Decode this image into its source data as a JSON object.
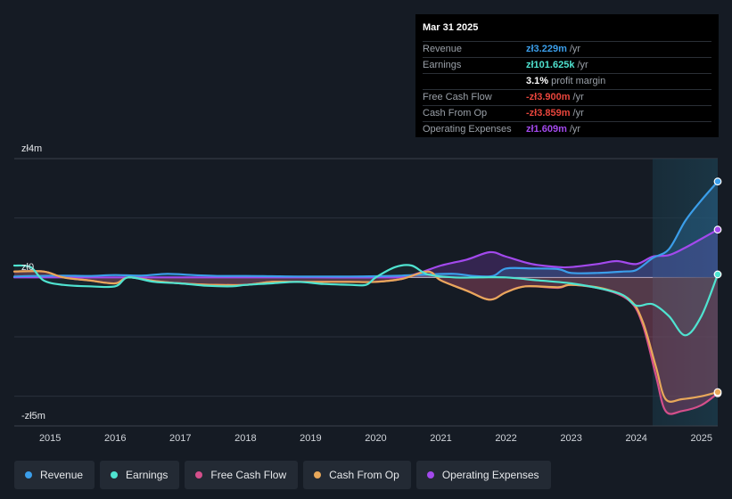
{
  "chart_data": {
    "type": "line",
    "currency_axis_labels": {
      "top": "zł4m",
      "zero": "zł0",
      "bottom": "-zł5m"
    },
    "ylim": [
      -5,
      4
    ],
    "y_unit": "zł millions",
    "x_ticks": [
      "2015",
      "2016",
      "2017",
      "2018",
      "2019",
      "2020",
      "2021",
      "2022",
      "2023",
      "2024",
      "2025"
    ],
    "xlim": [
      2014.45,
      2025.25
    ],
    "highlight_start": 2024.25,
    "series": [
      {
        "name": "Revenue",
        "color": "#3b9eea",
        "x": [
          2014.45,
          2014.8,
          2015.2,
          2015.6,
          2016.0,
          2016.4,
          2016.8,
          2017.2,
          2017.6,
          2018.0,
          2018.4,
          2018.8,
          2019.2,
          2019.6,
          2020.0,
          2020.4,
          2020.8,
          2021.2,
          2021.5,
          2021.8,
          2022.0,
          2022.4,
          2022.8,
          2023.0,
          2023.4,
          2023.8,
          2024.0,
          2024.25,
          2024.5,
          2024.75,
          2025.0,
          2025.25
        ],
        "values": [
          0.03,
          0.05,
          0.06,
          0.05,
          0.08,
          0.06,
          0.12,
          0.08,
          0.05,
          0.05,
          0.04,
          0.03,
          0.03,
          0.03,
          0.04,
          0.06,
          0.1,
          0.12,
          0.05,
          0.05,
          0.3,
          0.3,
          0.28,
          0.15,
          0.15,
          0.2,
          0.25,
          0.65,
          0.95,
          1.9,
          2.6,
          3.229
        ]
      },
      {
        "name": "Earnings",
        "color": "#4fe3d0",
        "x": [
          2014.45,
          2014.7,
          2014.9,
          2015.2,
          2015.6,
          2016.0,
          2016.2,
          2016.6,
          2017.0,
          2017.4,
          2017.8,
          2018.0,
          2018.4,
          2018.8,
          2019.2,
          2019.6,
          2019.85,
          2020.0,
          2020.3,
          2020.55,
          2020.8,
          2021.2,
          2021.6,
          2022.0,
          2022.5,
          2023.0,
          2023.5,
          2023.8,
          2024.0,
          2024.25,
          2024.5,
          2024.75,
          2025.0,
          2025.25
        ],
        "values": [
          0.4,
          0.35,
          -0.1,
          -0.25,
          -0.3,
          -0.3,
          0.0,
          -0.15,
          -0.2,
          -0.28,
          -0.3,
          -0.25,
          -0.2,
          -0.15,
          -0.22,
          -0.25,
          -0.25,
          0.0,
          0.35,
          0.4,
          0.1,
          0.0,
          0.0,
          0.0,
          -0.1,
          -0.2,
          -0.4,
          -0.6,
          -0.95,
          -0.9,
          -1.3,
          -1.95,
          -1.3,
          0.1016
        ]
      },
      {
        "name": "Free Cash Flow",
        "color": "#d44f8b",
        "x": [
          2014.45,
          2014.9,
          2015.2,
          2015.6,
          2016.0,
          2016.2,
          2016.6,
          2017.0,
          2017.5,
          2018.0,
          2018.4,
          2018.8,
          2019.2,
          2019.6,
          2020.0,
          2020.4,
          2020.8,
          2021.0,
          2021.4,
          2021.75,
          2022.0,
          2022.3,
          2022.8,
          2023.0,
          2023.5,
          2023.9,
          2024.1,
          2024.3,
          2024.45,
          2024.7,
          2025.0,
          2025.25
        ],
        "values": [
          0.2,
          0.2,
          0.0,
          -0.1,
          -0.2,
          0.0,
          -0.12,
          -0.2,
          -0.25,
          -0.25,
          -0.15,
          -0.15,
          -0.15,
          -0.15,
          -0.15,
          -0.05,
          0.2,
          -0.1,
          -0.45,
          -0.75,
          -0.5,
          -0.3,
          -0.35,
          -0.25,
          -0.4,
          -0.8,
          -1.6,
          -3.3,
          -4.5,
          -4.5,
          -4.3,
          -3.9
        ]
      },
      {
        "name": "Cash From Op",
        "color": "#e8a85a",
        "x": [
          2014.45,
          2014.9,
          2015.2,
          2015.6,
          2016.0,
          2016.2,
          2016.6,
          2017.0,
          2017.5,
          2018.0,
          2018.4,
          2018.8,
          2019.2,
          2019.6,
          2020.0,
          2020.4,
          2020.8,
          2021.0,
          2021.4,
          2021.75,
          2022.0,
          2022.3,
          2022.8,
          2023.0,
          2023.5,
          2023.9,
          2024.1,
          2024.3,
          2024.45,
          2024.7,
          2025.0,
          2025.25
        ],
        "values": [
          0.2,
          0.2,
          0.0,
          -0.1,
          -0.2,
          0.0,
          -0.12,
          -0.2,
          -0.25,
          -0.25,
          -0.15,
          -0.15,
          -0.15,
          -0.15,
          -0.15,
          -0.05,
          0.2,
          -0.1,
          -0.45,
          -0.75,
          -0.5,
          -0.3,
          -0.33,
          -0.25,
          -0.38,
          -0.75,
          -1.5,
          -3.0,
          -4.1,
          -4.1,
          -4.0,
          -3.859
        ]
      },
      {
        "name": "Operating Expenses",
        "color": "#a349ed",
        "x": [
          2014.45,
          2015.0,
          2016.0,
          2017.0,
          2018.0,
          2019.0,
          2020.0,
          2020.5,
          2021.0,
          2021.4,
          2021.75,
          2022.0,
          2022.4,
          2022.8,
          2023.0,
          2023.4,
          2023.7,
          2024.0,
          2024.25,
          2024.5,
          2024.75,
          2025.0,
          2025.25
        ],
        "values": [
          0.0,
          0.0,
          0.0,
          0.0,
          0.0,
          0.0,
          0.0,
          0.05,
          0.4,
          0.6,
          0.85,
          0.7,
          0.45,
          0.35,
          0.35,
          0.45,
          0.55,
          0.45,
          0.7,
          0.75,
          1.0,
          1.3,
          1.609
        ]
      }
    ]
  },
  "tooltip": {
    "date": "Mar 31 2025",
    "rows": [
      {
        "label": "Revenue",
        "value": "zł3.229m",
        "unit": "/yr",
        "color": "#3b9eea"
      },
      {
        "label": "Earnings",
        "value": "zł101.625k",
        "unit": "/yr",
        "color": "#4fe3d0"
      },
      {
        "label": "",
        "value": "3.1%",
        "unit": "profit margin",
        "color": "#ffffff"
      },
      {
        "label": "Free Cash Flow",
        "value": "-zł3.900m",
        "unit": "/yr",
        "color": "#e8453c"
      },
      {
        "label": "Cash From Op",
        "value": "-zł3.859m",
        "unit": "/yr",
        "color": "#e8453c"
      },
      {
        "label": "Operating Expenses",
        "value": "zł1.609m",
        "unit": "/yr",
        "color": "#a349ed"
      }
    ]
  },
  "legend": [
    {
      "label": "Revenue",
      "color": "#3b9eea"
    },
    {
      "label": "Earnings",
      "color": "#4fe3d0"
    },
    {
      "label": "Free Cash Flow",
      "color": "#d44f8b"
    },
    {
      "label": "Cash From Op",
      "color": "#e8a85a"
    },
    {
      "label": "Operating Expenses",
      "color": "#a349ed"
    }
  ]
}
